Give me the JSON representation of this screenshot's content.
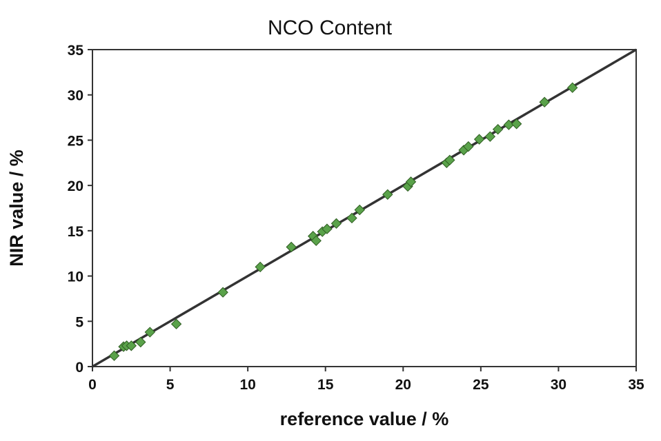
{
  "chart_data": {
    "type": "scatter",
    "title": "NCO Content",
    "xlabel": "reference value / %",
    "ylabel": "NIR value / %",
    "xlim": [
      0,
      35
    ],
    "ylim": [
      0,
      35
    ],
    "xticks": [
      0,
      5,
      10,
      15,
      20,
      25,
      30,
      35
    ],
    "yticks": [
      0,
      5,
      10,
      15,
      20,
      25,
      30,
      35
    ],
    "grid": false,
    "legend": "none",
    "reference_line": {
      "from": [
        0,
        0
      ],
      "to": [
        35,
        35
      ]
    },
    "marker": "diamond",
    "marker_color": "#5aa24a",
    "line_color": "#333333",
    "series": [
      {
        "x": [
          1.4,
          2.0,
          2.2,
          2.5,
          3.1,
          3.7,
          5.4,
          8.4,
          10.8,
          12.8,
          14.2,
          14.4,
          14.8,
          15.1,
          15.7,
          16.7,
          17.2,
          19.0,
          20.3,
          20.5,
          22.8,
          23.0,
          23.9,
          24.2,
          24.9,
          25.6,
          26.1,
          26.8,
          27.3,
          29.1,
          30.9
        ],
        "y": [
          1.2,
          2.2,
          2.3,
          2.3,
          2.7,
          3.8,
          4.7,
          8.2,
          11.0,
          13.2,
          14.4,
          13.9,
          14.9,
          15.2,
          15.8,
          16.4,
          17.3,
          19.0,
          19.9,
          20.4,
          22.5,
          22.8,
          23.9,
          24.3,
          25.1,
          25.4,
          26.2,
          26.7,
          26.8,
          29.2,
          30.8
        ]
      }
    ]
  }
}
